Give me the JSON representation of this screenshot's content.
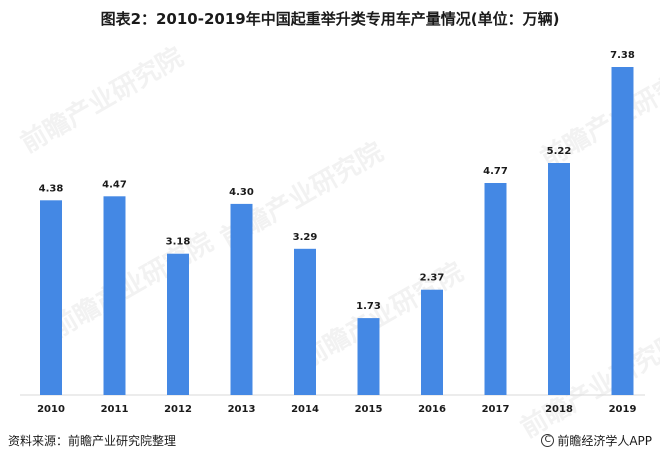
{
  "chart_data": {
    "type": "bar",
    "title": "图表2：2010-2019年中国起重举升类专用车产量情况(单位：万辆)",
    "categories": [
      "2010",
      "2011",
      "2012",
      "2013",
      "2014",
      "2015",
      "2016",
      "2017",
      "2018",
      "2019"
    ],
    "values": [
      4.38,
      4.47,
      3.18,
      4.3,
      3.29,
      1.73,
      2.37,
      4.77,
      5.22,
      7.38
    ],
    "data_labels": [
      "4.38",
      "4.47",
      "3.18",
      "4.30",
      "3.29",
      "1.73",
      "2.37",
      "4.77",
      "5.22",
      "7.38"
    ],
    "bar_color": "#4488e4",
    "ylim": [
      0,
      7.38
    ],
    "grid": false,
    "legend": "none"
  },
  "footer": {
    "source": "资料来源：前瞻产业研究院整理",
    "brand": "前瞻经济学人APP",
    "brand_icon": "copyright-circle-icon"
  },
  "watermark": {
    "text": "前瞻产业研究院"
  }
}
